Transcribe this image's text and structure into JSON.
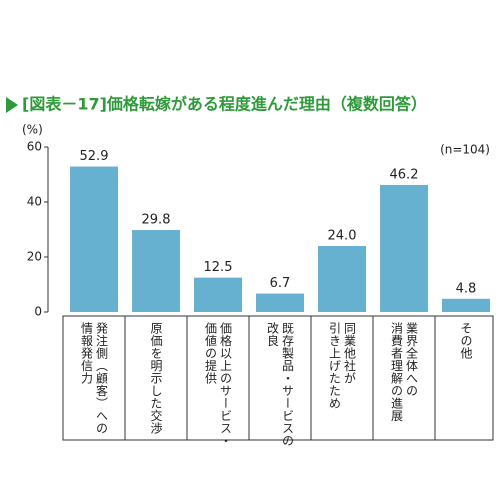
{
  "chart_data": {
    "type": "bar",
    "title": "[図表－17]価格転嫁がある程度進んだ理由（複数回答）",
    "y_label": "(%)",
    "annotation": "(n=104)",
    "categories": [
      [
        "発注側（顧客）への",
        "情報発信力"
      ],
      [
        "原価を明示した交渉"
      ],
      [
        "価格以上のサービス・",
        "価値の提供"
      ],
      [
        "既存製品・サービスの",
        "改良"
      ],
      [
        "同業他社が",
        "引き上げたため"
      ],
      [
        "業界全体への",
        "消費者理解の進展"
      ],
      [
        "その他"
      ]
    ],
    "values": [
      52.9,
      29.8,
      12.5,
      6.7,
      24.0,
      46.2,
      4.8
    ],
    "value_labels": [
      "52.9",
      "29.8",
      "12.5",
      "6.7",
      "24.0",
      "46.2",
      "4.8"
    ],
    "color": "#66b1d0",
    "ylim": [
      0,
      60
    ],
    "yticks": [
      0,
      20,
      40,
      60
    ]
  }
}
